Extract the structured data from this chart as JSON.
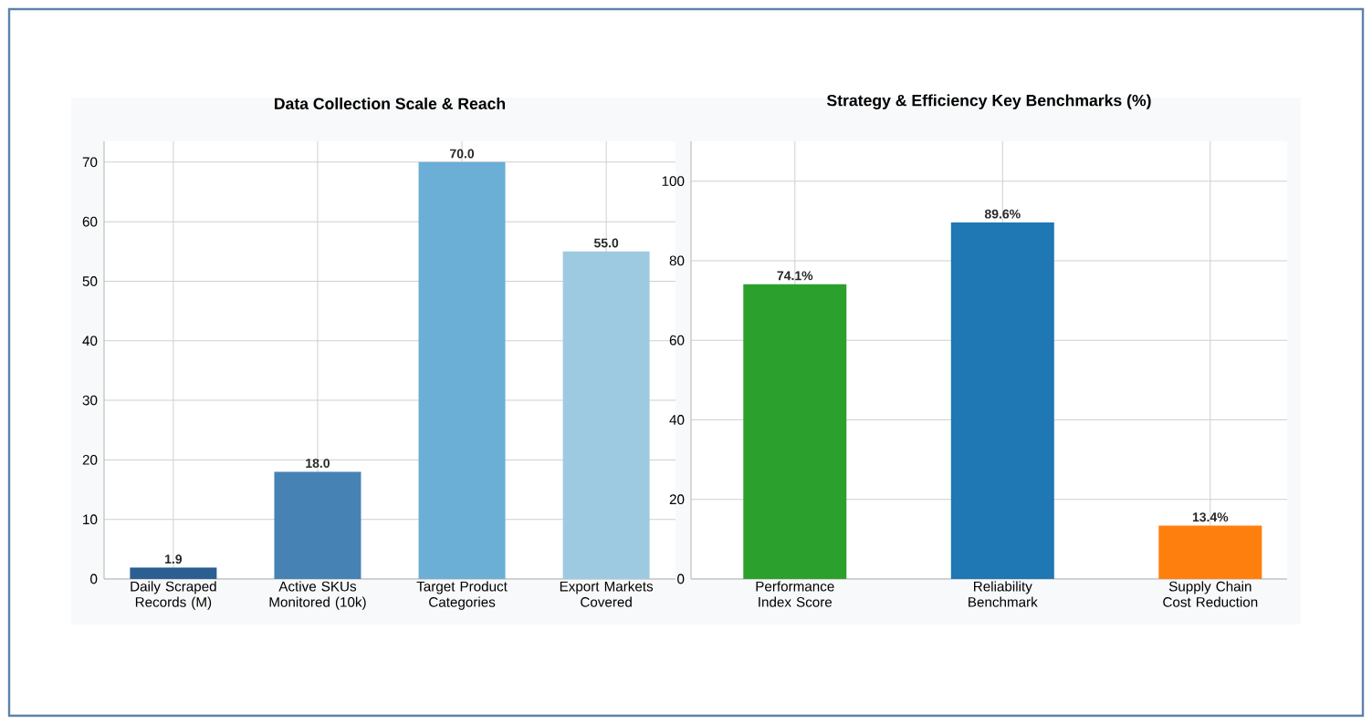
{
  "chart_data": [
    {
      "type": "bar",
      "title": "Data Collection Scale & Reach",
      "categories": [
        "Daily Scraped Records (M)",
        "Active SKUs Monitored (10k)",
        "Target Product Categories",
        "Export Markets Covered"
      ],
      "values": [
        1.9,
        18.0,
        70.0,
        55.0
      ],
      "colors": [
        "#2b5f91",
        "#4682b4",
        "#6baed6",
        "#9ecae1"
      ],
      "value_labels": [
        "1.9",
        "18.0",
        "70.0",
        "55.0"
      ],
      "ylim": [
        0,
        73.5
      ],
      "yticks": [
        0,
        10,
        20,
        30,
        40,
        50,
        60,
        70
      ],
      "grid": true
    },
    {
      "type": "bar",
      "title": "Strategy & Efficiency Key Benchmarks (%)",
      "categories": [
        "Performance Index Score",
        "Reliability Benchmark",
        "Supply Chain Cost Reduction"
      ],
      "values": [
        74.1,
        89.6,
        13.4
      ],
      "colors": [
        "#2ca02c",
        "#1f77b4",
        "#ff7f0e"
      ],
      "value_labels": [
        "74.1%",
        "89.6%",
        "13.4%"
      ],
      "ylim": [
        0,
        110
      ],
      "yticks": [
        0,
        20,
        40,
        60,
        80,
        100
      ],
      "grid": true
    }
  ]
}
